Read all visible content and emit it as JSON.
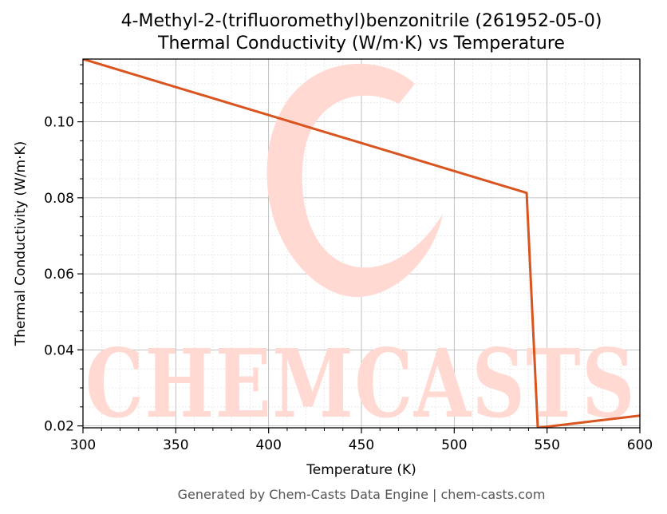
{
  "colors": {
    "line": "#d9541e",
    "watermark": "#ffd9d2",
    "footer": "#555555",
    "grid_major": "#b0b0b0",
    "grid_minor": "#dddddd"
  },
  "watermark": {
    "text": "CHEMCASTS"
  },
  "footer": "Generated by Chem-Casts Data Engine | chem-casts.com",
  "chart_data": {
    "type": "line",
    "title": "4-Methyl-2-(trifluoromethyl)benzonitrile (261952-05-0)",
    "subtitle": "Thermal Conductivity (W/m·K) vs Temperature",
    "xlabel": "Temperature (K)",
    "ylabel": "Thermal Conductivity (W/m·K)",
    "xlim": [
      300,
      600
    ],
    "ylim": [
      0.0195,
      0.1165
    ],
    "xticks": [
      300,
      350,
      400,
      450,
      500,
      550,
      600
    ],
    "yticks": [
      0.02,
      0.04,
      0.06,
      0.08,
      0.1
    ],
    "ytick_labels": [
      "0.02",
      "0.04",
      "0.06",
      "0.08",
      "0.10"
    ],
    "grid": true,
    "minor_grid": true,
    "series": [
      {
        "x": [
          300,
          539,
          545,
          600
        ],
        "y": [
          0.1165,
          0.0813,
          0.0195,
          0.0227
        ]
      }
    ]
  }
}
